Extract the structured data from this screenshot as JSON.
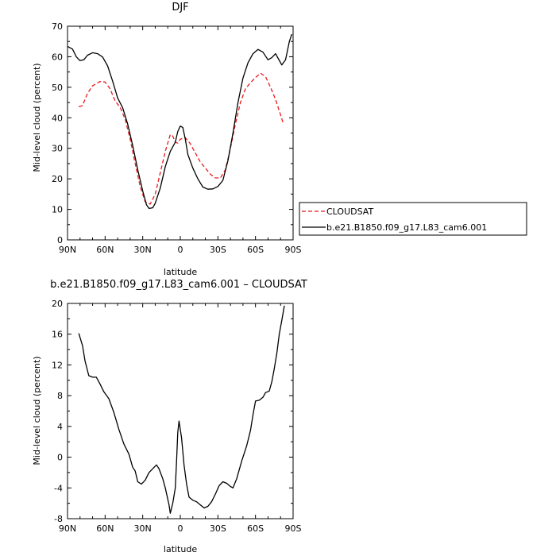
{
  "chart_data": [
    {
      "type": "line",
      "title": "DJF",
      "xlabel": "latitude",
      "ylabel": "Mid-level cloud (percent)",
      "xlim": [
        90,
        -90
      ],
      "ylim": [
        0,
        70
      ],
      "x_ticks": [
        {
          "value": 90,
          "label": "90N"
        },
        {
          "value": 60,
          "label": "60N"
        },
        {
          "value": 30,
          "label": "30N"
        },
        {
          "value": 0,
          "label": "0"
        },
        {
          "value": -30,
          "label": "30S"
        },
        {
          "value": -60,
          "label": "60S"
        },
        {
          "value": -90,
          "label": "90S"
        }
      ],
      "y_ticks": [
        0,
        10,
        20,
        30,
        40,
        50,
        60,
        70
      ],
      "legend": "right",
      "series": [
        {
          "name": "CLOUDSAT",
          "color": "#e8191c",
          "dash": "dashed",
          "points": [
            [
              81,
              43.6
            ],
            [
              78,
              44
            ],
            [
              74,
              48
            ],
            [
              70,
              50.5
            ],
            [
              64,
              51.9
            ],
            [
              60,
              51.7
            ],
            [
              56,
              49.5
            ],
            [
              52,
              45.5
            ],
            [
              48,
              43.4
            ],
            [
              44,
              39.5
            ],
            [
              40,
              33
            ],
            [
              36,
              25
            ],
            [
              32,
              17.5
            ],
            [
              28,
              12.5
            ],
            [
              24,
              11.7
            ],
            [
              20,
              15
            ],
            [
              16,
              22
            ],
            [
              12,
              29
            ],
            [
              8,
              34.5
            ],
            [
              6,
              34
            ],
            [
              4,
              32
            ],
            [
              2,
              31.7
            ],
            [
              0,
              33
            ],
            [
              -4,
              33.5
            ],
            [
              -8,
              31.5
            ],
            [
              -12,
              28.5
            ],
            [
              -16,
              25.5
            ],
            [
              -20,
              23.5
            ],
            [
              -24,
              21.5
            ],
            [
              -28,
              20.3
            ],
            [
              -32,
              20.3
            ],
            [
              -36,
              23
            ],
            [
              -40,
              30
            ],
            [
              -44,
              38
            ],
            [
              -48,
              45
            ],
            [
              -52,
              49.5
            ],
            [
              -56,
              51.5
            ],
            [
              -60,
              53.2
            ],
            [
              -64,
              54.6
            ],
            [
              -68,
              53.5
            ],
            [
              -72,
              50
            ],
            [
              -76,
              46
            ],
            [
              -80,
              41
            ],
            [
              -82,
              38.3
            ]
          ]
        },
        {
          "name": "b.e21.B1850.f09_g17.L83_cam6.001",
          "color": "#000000",
          "dash": "solid",
          "points": [
            [
              90,
              63.4
            ],
            [
              86,
              62.5
            ],
            [
              83,
              60
            ],
            [
              80,
              58.7
            ],
            [
              77,
              59
            ],
            [
              74,
              60.5
            ],
            [
              70,
              61.3
            ],
            [
              66,
              61
            ],
            [
              62,
              59.9
            ],
            [
              58,
              57
            ],
            [
              54,
              52
            ],
            [
              50,
              46.5
            ],
            [
              46,
              43.3
            ],
            [
              42,
              38
            ],
            [
              38,
              31
            ],
            [
              34,
              23
            ],
            [
              30,
              16
            ],
            [
              27,
              11.5
            ],
            [
              25,
              10.3
            ],
            [
              22,
              10.5
            ],
            [
              20,
              12
            ],
            [
              16,
              17
            ],
            [
              12,
              24
            ],
            [
              8,
              29
            ],
            [
              4,
              32
            ],
            [
              2,
              35.5
            ],
            [
              0,
              37.3
            ],
            [
              -2,
              36.8
            ],
            [
              -4,
              33
            ],
            [
              -6,
              28
            ],
            [
              -10,
              23.5
            ],
            [
              -14,
              20
            ],
            [
              -18,
              17.3
            ],
            [
              -22,
              16.6
            ],
            [
              -26,
              16.7
            ],
            [
              -30,
              17.5
            ],
            [
              -34,
              19.5
            ],
            [
              -38,
              26
            ],
            [
              -42,
              35
            ],
            [
              -46,
              45
            ],
            [
              -50,
              53
            ],
            [
              -54,
              58
            ],
            [
              -58,
              61
            ],
            [
              -62,
              62.4
            ],
            [
              -66,
              61.5
            ],
            [
              -70,
              59
            ],
            [
              -73,
              59.7
            ],
            [
              -76,
              61
            ],
            [
              -79,
              58.8
            ],
            [
              -81,
              57.3
            ],
            [
              -84,
              59
            ],
            [
              -87,
              65
            ],
            [
              -89,
              67.4
            ]
          ]
        }
      ]
    },
    {
      "type": "line",
      "title": "b.e21.B1850.f09_g17.L83_cam6.001 – CLOUDSAT",
      "xlabel": "latitude",
      "ylabel": "Mid-level cloud (percent)",
      "xlim": [
        90,
        -90
      ],
      "ylim": [
        -8,
        20
      ],
      "x_ticks": [
        {
          "value": 90,
          "label": "90N"
        },
        {
          "value": 60,
          "label": "60N"
        },
        {
          "value": 30,
          "label": "30N"
        },
        {
          "value": 0,
          "label": "0"
        },
        {
          "value": -30,
          "label": "30S"
        },
        {
          "value": -60,
          "label": "60S"
        },
        {
          "value": -90,
          "label": "90S"
        }
      ],
      "y_ticks": [
        -8,
        -4,
        0,
        4,
        8,
        12,
        16,
        20
      ],
      "series": [
        {
          "color": "#000000",
          "dash": "solid",
          "points": [
            [
              81,
              16.1
            ],
            [
              78,
              14.5
            ],
            [
              76,
              12.5
            ],
            [
              73,
              10.6
            ],
            [
              70,
              10.4
            ],
            [
              67,
              10.4
            ],
            [
              64,
              9.5
            ],
            [
              61,
              8.5
            ],
            [
              57,
              7.6
            ],
            [
              53,
              5.8
            ],
            [
              49,
              3.6
            ],
            [
              45,
              1.7
            ],
            [
              41,
              0.4
            ],
            [
              38,
              -1.3
            ],
            [
              36,
              -1.8
            ],
            [
              34,
              -3.2
            ],
            [
              31,
              -3.5
            ],
            [
              28,
              -3
            ],
            [
              25,
              -2
            ],
            [
              22,
              -1.5
            ],
            [
              19,
              -1
            ],
            [
              17,
              -1.5
            ],
            [
              14,
              -2.8
            ],
            [
              12,
              -4
            ],
            [
              9,
              -6.2
            ],
            [
              8,
              -7.3
            ],
            [
              6,
              -6
            ],
            [
              4,
              -4
            ],
            [
              3,
              -0.5
            ],
            [
              2,
              3.2
            ],
            [
              1,
              4.7
            ],
            [
              -1,
              2.5
            ],
            [
              -3,
              -1
            ],
            [
              -5,
              -3.5
            ],
            [
              -7,
              -5.2
            ],
            [
              -10,
              -5.6
            ],
            [
              -13,
              -5.8
            ],
            [
              -16,
              -6.2
            ],
            [
              -19,
              -6.6
            ],
            [
              -22,
              -6.4
            ],
            [
              -25,
              -5.8
            ],
            [
              -28,
              -4.8
            ],
            [
              -31,
              -3.7
            ],
            [
              -34,
              -3.2
            ],
            [
              -37,
              -3.4
            ],
            [
              -40,
              -3.8
            ],
            [
              -42,
              -4
            ],
            [
              -45,
              -2.8
            ],
            [
              -49,
              -0.5
            ],
            [
              -53,
              1.5
            ],
            [
              -56,
              3.5
            ],
            [
              -58,
              5.5
            ],
            [
              -60,
              7.3
            ],
            [
              -63,
              7.4
            ],
            [
              -66,
              7.8
            ],
            [
              -68,
              8.4
            ],
            [
              -71,
              8.6
            ],
            [
              -73,
              9.8
            ],
            [
              -75,
              11.5
            ],
            [
              -77,
              13.5
            ],
            [
              -79,
              16
            ],
            [
              -81,
              17.8
            ],
            [
              -83,
              19.7
            ]
          ]
        }
      ]
    }
  ]
}
